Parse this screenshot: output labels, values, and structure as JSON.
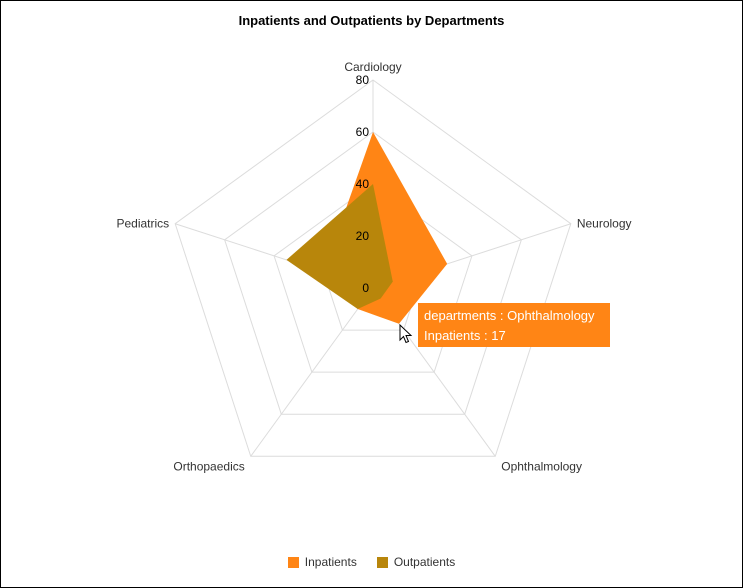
{
  "chart_data": {
    "type": "radar",
    "title": "Inpatients and Outpatients by Departments",
    "categories": [
      "Cardiology",
      "Neurology",
      "Ophthalmology",
      "Orthopaedics",
      "Pediatrics"
    ],
    "rlim": [
      0,
      80
    ],
    "rticks": [
      "0",
      "20",
      "40",
      "60",
      "80"
    ],
    "grid": true,
    "legend_position": "bottom",
    "series": [
      {
        "name": "Inpatients",
        "color": "#ff8515",
        "values": [
          60,
          30,
          17,
          10,
          20
        ]
      },
      {
        "name": "Outpatients",
        "color": "#b8860b",
        "values": [
          40,
          8,
          5,
          10,
          35
        ]
      }
    ]
  },
  "tooltip": {
    "line1": "departments : Ophthalmology",
    "line2": "Inpatients : 17"
  }
}
